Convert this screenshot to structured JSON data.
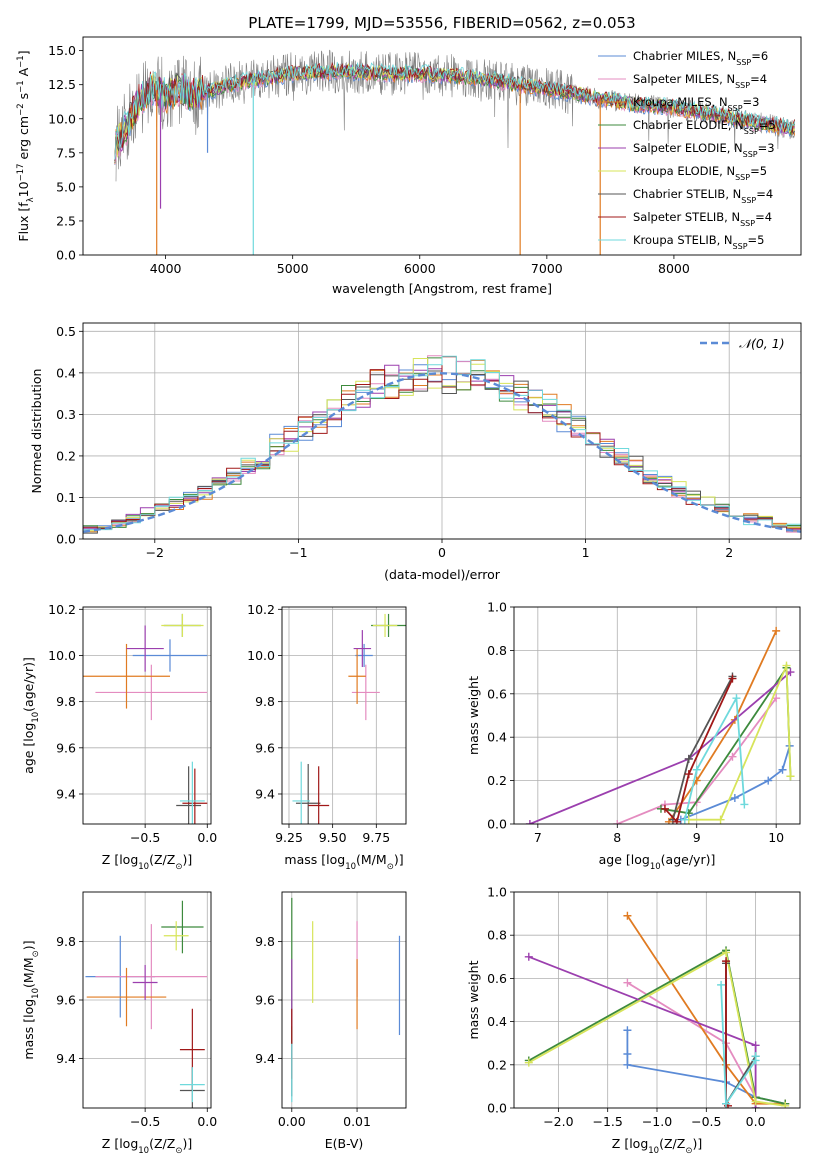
{
  "colors": {
    "chabrier_miles": "#5b8bd6",
    "salpeter_miles": "#e48cc0",
    "kroupa_miles": "#e07b22",
    "chabrier_elodie": "#3d8a3d",
    "salpeter_elodie": "#9b3fae",
    "kroupa_elodie": "#d7e45a",
    "chabrier_stelib": "#555555",
    "salpeter_stelib": "#a01818",
    "kroupa_stelib": "#6fd9dc",
    "data": "#808080",
    "gauss": "#5b8bd6",
    "grid": "#b0b0b0"
  },
  "chart_data": [
    {
      "type": "line",
      "title": "PLATE=1799, MJD=53556, FIBERID=0562, z=0.053",
      "xlabel": "wavelength [Angstrom, rest frame]",
      "ylabel_parts": [
        "Flux [f",
        "λ",
        "10",
        "−17",
        " erg cm",
        "−2",
        " s",
        "−1",
        " A",
        "−1",
        "]"
      ],
      "xlim": [
        3350,
        9000
      ],
      "ylim": [
        0,
        16
      ],
      "xticks": [
        "4000",
        "5000",
        "6000",
        "7000",
        "8000"
      ],
      "yticks": [
        "0.0",
        "2.5",
        "5.0",
        "7.5",
        "10.0",
        "12.5",
        "15.0"
      ],
      "grid": false,
      "legend_position": "top-right",
      "legend": [
        {
          "label": "Chabrier MILES, N",
          "sub": "SSP",
          "suffix": "=6"
        },
        {
          "label": "Salpeter MILES, N",
          "sub": "SSP",
          "suffix": "=4"
        },
        {
          "label": "Kroupa MILES, N",
          "sub": "SSP",
          "suffix": "=3"
        },
        {
          "label": "Chabrier ELODIE, N",
          "sub": "SSP",
          "suffix": "=5"
        },
        {
          "label": "Salpeter ELODIE, N",
          "sub": "SSP",
          "suffix": "=3"
        },
        {
          "label": "Kroupa ELODIE, N",
          "sub": "SSP",
          "suffix": "=5"
        },
        {
          "label": "Chabrier STELIB, N",
          "sub": "SSP",
          "suffix": "=4"
        },
        {
          "label": "Salpeter STELIB, N",
          "sub": "SSP",
          "suffix": "=4"
        },
        {
          "label": "Kroupa STELIB, N",
          "sub": "SSP",
          "suffix": "=5"
        }
      ],
      "spectrum_anchors": {
        "x": [
          3600,
          3700,
          3800,
          3900,
          4000,
          4100,
          4200,
          4300,
          4500,
          4800,
          5000,
          5200,
          5400,
          5600,
          5800,
          6000,
          6200,
          6400,
          6600,
          6800,
          7000,
          7200,
          7400,
          7600,
          7800,
          8000,
          8200,
          8400,
          8600,
          8900
        ],
        "y": [
          8.0,
          9.5,
          11.5,
          12.3,
          11.6,
          12.2,
          11.8,
          11.9,
          12.5,
          13.0,
          13.3,
          13.4,
          13.5,
          13.4,
          13.3,
          13.3,
          13.2,
          13.0,
          12.8,
          12.5,
          12.2,
          11.9,
          11.5,
          11.2,
          11.0,
          10.8,
          10.5,
          10.2,
          9.8,
          9.3
        ]
      },
      "model_spikes": [
        {
          "series": 2,
          "x": 3930,
          "depth": 0
        },
        {
          "series": 4,
          "x": 3960,
          "depth": 3.4
        },
        {
          "series": 8,
          "x": 4690,
          "depth": 0
        },
        {
          "series": 2,
          "x": 6790,
          "depth": 0
        },
        {
          "series": 2,
          "x": 7420,
          "depth": 0
        },
        {
          "series": 0,
          "x": 4330,
          "depth": 7.5
        }
      ]
    },
    {
      "type": "line",
      "xlabel": "(data-model)/error",
      "ylabel": "Normed distribution",
      "xlim": [
        -2.5,
        2.5
      ],
      "ylim": [
        0,
        0.52
      ],
      "xticks": [
        "−2",
        "−1",
        "0",
        "1",
        "2"
      ],
      "yticks": [
        "0.0",
        "0.1",
        "0.2",
        "0.3",
        "0.4",
        "0.5"
      ],
      "grid": true,
      "legend_position": "top-right",
      "legend_label": "𝒩(0, 1)",
      "bin_edges_start": -2.5,
      "bin_width": 0.1
    },
    {
      "type": "scatter",
      "xlabel_parts": [
        "Z [log",
        "10",
        "(Z/Z",
        "⊙",
        ")]"
      ],
      "ylabel_parts": [
        "age  [log",
        "10",
        "(age/yr)]"
      ],
      "xlim": [
        -1.0,
        0.03
      ],
      "ylim": [
        9.27,
        10.21
      ],
      "xticks": [
        "−0.5",
        "0.0"
      ],
      "yticks": [
        "9.4",
        "9.6",
        "9.8",
        "10.0",
        "10.2"
      ],
      "grid": true,
      "points": [
        {
          "series": 0,
          "x": -0.3,
          "xerr": 0.3,
          "y": 10.0,
          "yerr": 0.07
        },
        {
          "series": 1,
          "x": -0.45,
          "xerr": 0.45,
          "y": 9.84,
          "yerr": 0.12
        },
        {
          "series": 2,
          "x": -0.65,
          "xerr": 0.35,
          "y": 9.91,
          "yerr": 0.14
        },
        {
          "series": 3,
          "x": -0.2,
          "xerr": 0.15,
          "y": 10.13,
          "yerr": 0.05
        },
        {
          "series": 4,
          "x": -0.5,
          "xerr": 0.15,
          "y": 10.03,
          "yerr": 0.1
        },
        {
          "series": 5,
          "x": -0.2,
          "xerr": 0.17,
          "y": 10.13,
          "yerr": 0.05
        },
        {
          "series": 6,
          "x": -0.15,
          "xerr": 0.1,
          "y": 9.35,
          "yerr": 0.17
        },
        {
          "series": 7,
          "x": -0.1,
          "xerr": 0.1,
          "y": 9.36,
          "yerr": 0.15
        },
        {
          "series": 8,
          "x": -0.12,
          "xerr": 0.1,
          "y": 9.37,
          "yerr": 0.17
        }
      ]
    },
    {
      "type": "scatter",
      "xlabel_parts": [
        "mass [log",
        "10",
        "(M/M",
        "⊙",
        ")]"
      ],
      "xlim": [
        9.21,
        9.92
      ],
      "ylim": [
        9.27,
        10.21
      ],
      "xticks": [
        "9.25",
        "9.50",
        "9.75"
      ],
      "yticks": [
        "9.4",
        "9.6",
        "9.8",
        "10.0",
        "10.2"
      ],
      "grid": true,
      "points": [
        {
          "series": 0,
          "x": 9.68,
          "xerr": 0.05,
          "y": 10.0,
          "yerr": 0.05
        },
        {
          "series": 1,
          "x": 9.69,
          "xerr": 0.08,
          "y": 9.84,
          "yerr": 0.12
        },
        {
          "series": 2,
          "x": 9.64,
          "xerr": 0.05,
          "y": 9.91,
          "yerr": 0.12
        },
        {
          "series": 3,
          "x": 9.82,
          "xerr": 0.1,
          "y": 10.13,
          "yerr": 0.05
        },
        {
          "series": 4,
          "x": 9.67,
          "xerr": 0.05,
          "y": 10.03,
          "yerr": 0.08
        },
        {
          "series": 5,
          "x": 9.8,
          "xerr": 0.07,
          "y": 10.13,
          "yerr": 0.05
        },
        {
          "series": 6,
          "x": 9.36,
          "xerr": 0.07,
          "y": 9.36,
          "yerr": 0.17
        },
        {
          "series": 7,
          "x": 9.42,
          "xerr": 0.06,
          "y": 9.35,
          "yerr": 0.17
        },
        {
          "series": 8,
          "x": 9.32,
          "xerr": 0.05,
          "y": 9.37,
          "yerr": 0.17
        }
      ]
    },
    {
      "type": "line",
      "xlabel_parts": [
        "age  [log",
        "10",
        "(age/yr)]"
      ],
      "ylabel": "mass weight",
      "xlim": [
        6.7,
        10.3
      ],
      "ylim": [
        0,
        1.0
      ],
      "xticks": [
        "7",
        "8",
        "9",
        "10"
      ],
      "yticks": [
        "0.0",
        "0.2",
        "0.4",
        "0.6",
        "0.8",
        "1.0"
      ],
      "grid": true,
      "series": [
        {
          "series": 0,
          "x": [
            8.8,
            9.48,
            9.9,
            10.08,
            10.17
          ],
          "y": [
            0.02,
            0.12,
            0.2,
            0.25,
            0.36
          ]
        },
        {
          "series": 1,
          "x": [
            8.0,
            8.6,
            9.0,
            9.45,
            10.0
          ],
          "y": [
            0.0,
            0.09,
            0.1,
            0.31,
            0.58
          ]
        },
        {
          "series": 2,
          "x": [
            8.65,
            9.0,
            9.48,
            10.0
          ],
          "y": [
            0.01,
            0.2,
            0.48,
            0.89
          ]
        },
        {
          "series": 3,
          "x": [
            8.55,
            8.9,
            10.13,
            10.18
          ],
          "y": [
            0.07,
            0.05,
            0.72,
            0.22
          ]
        },
        {
          "series": 4,
          "x": [
            6.9,
            8.9,
            10.18
          ],
          "y": [
            0.0,
            0.3,
            0.7
          ]
        },
        {
          "series": 5,
          "x": [
            8.9,
            9.3,
            10.13,
            10.18
          ],
          "y": [
            0.02,
            0.02,
            0.73,
            0.22
          ]
        },
        {
          "series": 6,
          "x": [
            8.7,
            8.9,
            9.45
          ],
          "y": [
            0.02,
            0.3,
            0.68
          ]
        },
        {
          "series": 7,
          "x": [
            8.6,
            8.75,
            8.9,
            9.45
          ],
          "y": [
            0.07,
            0.01,
            0.23,
            0.67
          ]
        },
        {
          "series": 8,
          "x": [
            8.85,
            9.0,
            9.5,
            9.6
          ],
          "y": [
            0.02,
            0.25,
            0.58,
            0.09
          ]
        }
      ]
    },
    {
      "type": "scatter",
      "xlabel_parts": [
        "Z [log",
        "10",
        "(Z/Z",
        "⊙",
        ")]"
      ],
      "ylabel_parts": [
        "mass [log",
        "10",
        "(M/M",
        "⊙",
        ")]"
      ],
      "xlim": [
        -1.0,
        0.03
      ],
      "ylim": [
        9.23,
        9.97
      ],
      "xticks": [
        "−0.5",
        "0.0"
      ],
      "yticks": [
        "9.4",
        "9.6",
        "9.8"
      ],
      "grid": true,
      "points": [
        {
          "series": 0,
          "x": -0.7,
          "xerr": 0.28,
          "y": 9.68,
          "yerr": 0.14
        },
        {
          "series": 1,
          "x": -0.45,
          "xerr": 0.45,
          "y": 9.68,
          "yerr": 0.18
        },
        {
          "series": 2,
          "x": -0.65,
          "xerr": 0.32,
          "y": 9.61,
          "yerr": 0.1
        },
        {
          "series": 3,
          "x": -0.2,
          "xerr": 0.17,
          "y": 9.85,
          "yerr": 0.09
        },
        {
          "series": 4,
          "x": -0.5,
          "xerr": 0.1,
          "y": 9.66,
          "yerr": 0.06
        },
        {
          "series": 5,
          "x": -0.25,
          "xerr": 0.1,
          "y": 9.82,
          "yerr": 0.05
        },
        {
          "series": 6,
          "x": -0.12,
          "xerr": 0.1,
          "y": 9.29,
          "yerr": 0.08
        },
        {
          "series": 7,
          "x": -0.12,
          "xerr": 0.1,
          "y": 9.43,
          "yerr": 0.14
        },
        {
          "series": 8,
          "x": -0.12,
          "xerr": 0.1,
          "y": 9.31,
          "yerr": 0.06
        }
      ]
    },
    {
      "type": "scatter",
      "xlabel": "E(B-V)",
      "xlim": [
        -0.0015,
        0.0175
      ],
      "ylim": [
        9.23,
        9.97
      ],
      "xticks": [
        "0.00",
        "0.01"
      ],
      "yticks": [
        "9.4",
        "9.6",
        "9.8"
      ],
      "grid": true,
      "points": [
        {
          "series": 0,
          "x": 0.0165,
          "y": 9.65,
          "yerr": 0.17
        },
        {
          "series": 1,
          "x": 0.01,
          "y": 9.74,
          "yerr": 0.13
        },
        {
          "series": 2,
          "x": 0.01,
          "y": 9.62,
          "yerr": 0.12
        },
        {
          "series": 3,
          "x": 0.0,
          "y": 9.7,
          "yerr": 0.25
        },
        {
          "series": 4,
          "x": 0.0,
          "y": 9.62,
          "yerr": 0.12
        },
        {
          "series": 5,
          "x": 0.0032,
          "y": 9.73,
          "yerr": 0.14
        },
        {
          "series": 6,
          "x": 0.0,
          "y": 9.39,
          "yerr": 0.12
        },
        {
          "series": 7,
          "x": 0.0,
          "y": 9.45,
          "yerr": 0.12
        },
        {
          "series": 8,
          "x": 0.0,
          "y": 9.35,
          "yerr": 0.1
        }
      ]
    },
    {
      "type": "line",
      "xlabel_parts": [
        "Z [log",
        "10",
        "(Z/Z",
        "⊙",
        ")]"
      ],
      "ylabel": "mass weight",
      "xlim": [
        -2.45,
        0.45
      ],
      "ylim": [
        0,
        1.0
      ],
      "xticks": [
        "−2.0",
        "−1.5",
        "−1.0",
        "−0.5",
        "0.0"
      ],
      "yticks": [
        "0.0",
        "0.2",
        "0.4",
        "0.6",
        "0.8",
        "1.0"
      ],
      "grid": true,
      "series": [
        {
          "series": 0,
          "x": [
            -1.3,
            -1.3,
            -1.3,
            -0.3,
            0.0,
            0.3
          ],
          "y": [
            0.36,
            0.25,
            0.2,
            0.12,
            0.05,
            0.02
          ]
        },
        {
          "series": 1,
          "x": [
            -1.3,
            -0.3,
            0.0
          ],
          "y": [
            0.58,
            0.3,
            0.05
          ]
        },
        {
          "series": 2,
          "x": [
            -1.3,
            -0.3,
            0.0,
            0.3
          ],
          "y": [
            0.89,
            0.2,
            0.02,
            0.02
          ]
        },
        {
          "series": 3,
          "x": [
            -2.3,
            -0.3,
            0.0,
            0.3
          ],
          "y": [
            0.22,
            0.73,
            0.05,
            0.02
          ]
        },
        {
          "series": 4,
          "x": [
            -2.3,
            0.0,
            0.0
          ],
          "y": [
            0.7,
            0.29,
            0.0
          ]
        },
        {
          "series": 5,
          "x": [
            -2.3,
            -0.3,
            0.0,
            0.3
          ],
          "y": [
            0.21,
            0.72,
            0.03,
            0.01
          ]
        },
        {
          "series": 6,
          "x": [
            -0.3,
            -0.3,
            0.0
          ],
          "y": [
            0.67,
            0.02,
            0.24
          ]
        },
        {
          "series": 7,
          "x": [
            -0.3,
            -0.3,
            -0.28
          ],
          "y": [
            0.68,
            0.02,
            0.01
          ]
        },
        {
          "series": 8,
          "x": [
            -0.35,
            -0.3,
            0.0,
            0.0
          ],
          "y": [
            0.57,
            0.02,
            0.22,
            0.24
          ]
        }
      ]
    }
  ]
}
